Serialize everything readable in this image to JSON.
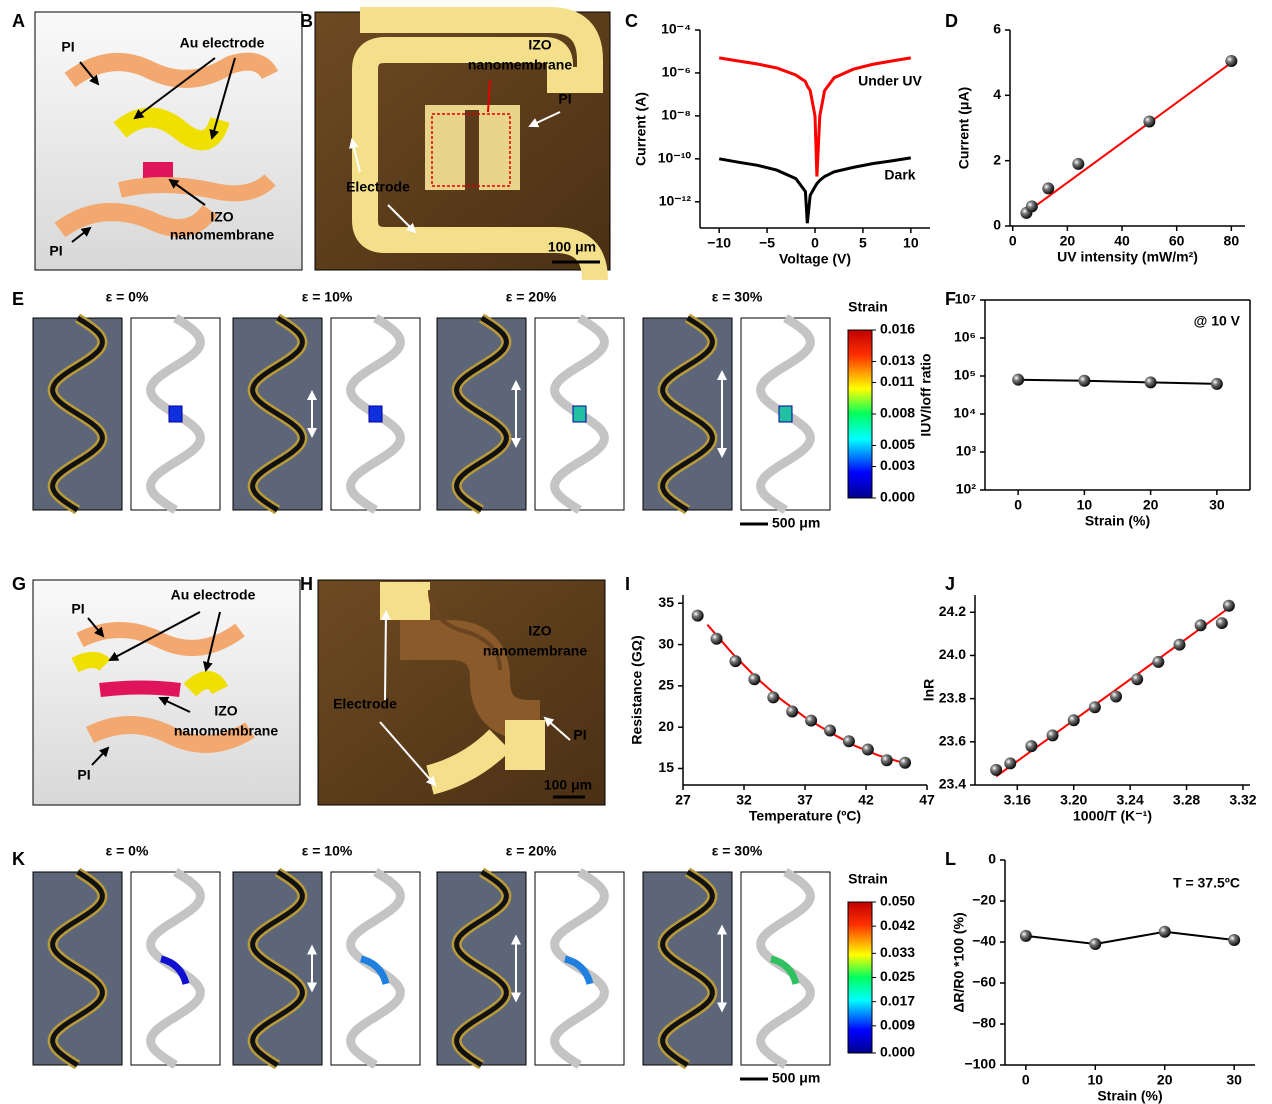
{
  "panel_labels": [
    "A",
    "B",
    "C",
    "D",
    "E",
    "F",
    "G",
    "H",
    "I",
    "J",
    "K",
    "L"
  ],
  "figure_a": {
    "labels": [
      "PI",
      "Au electrode",
      "IZO",
      "nanomembrane",
      "PI"
    ]
  },
  "figure_b": {
    "labels": [
      "IZO",
      "nanomembrane",
      "PI",
      "Electrode",
      "100 μm"
    ]
  },
  "figure_e": {
    "strains": [
      "ε = 0%",
      "ε = 10%",
      "ε = 20%",
      "ε = 30%"
    ],
    "colorbar_title": "Strain",
    "colorbar_ticks": [
      0.016,
      0.013,
      0.011,
      0.008,
      0.005,
      0.003,
      {
        "value": 0,
        "label": "0.000"
      }
    ],
    "scale_bar": "500 μm"
  },
  "figure_g": {
    "labels": [
      "PI",
      "Au electrode",
      "IZO",
      "nanomembrane",
      "PI"
    ]
  },
  "figure_h": {
    "labels": [
      "IZO",
      "nanomembrane",
      "PI",
      "Electrode",
      "100 μm"
    ]
  },
  "figure_k": {
    "strains": [
      "ε = 0%",
      "ε = 10%",
      "ε = 20%",
      "ε = 30%"
    ],
    "colorbar_title": "Strain",
    "colorbar_ticks": [
      {
        "value": 0.05,
        "label": "0.050"
      },
      0.042,
      0.033,
      0.025,
      0.017,
      0.009,
      {
        "value": 0,
        "label": "0.000"
      }
    ],
    "scale_bar": "500 μm"
  },
  "chart_data": [
    {
      "type": "line",
      "x_label": "Voltage (V)",
      "y_label": "Current (A)",
      "ylog": true,
      "x": [
        -10,
        -8,
        -6,
        -4,
        -2,
        -1,
        -0.8,
        -0.5,
        0,
        0.2,
        0.5,
        1,
        2,
        4,
        6,
        8,
        10
      ],
      "series": [
        {
          "name": "Under UV",
          "color": "#ff0000",
          "values": [
            5e-06,
            3.6e-06,
            2.6e-06,
            1.7e-06,
            8e-07,
            4e-07,
            2.5e-07,
            1.5e-07,
            1e-08,
            1.5e-11,
            1e-08,
            1.5e-07,
            6e-07,
            1.5e-06,
            2.5e-06,
            3.6e-06,
            5e-06
          ]
        },
        {
          "name": "Dark",
          "color": "#000000",
          "values": [
            1e-10,
            7e-11,
            5e-11,
            3e-11,
            1.2e-11,
            3e-12,
            1e-13,
            2e-12,
            5e-12,
            7e-12,
            1e-11,
            1.5e-11,
            2.5e-11,
            4e-11,
            6e-11,
            8e-11,
            1.1e-10
          ]
        }
      ],
      "xlim": [
        -12,
        12
      ],
      "xticks": [
        {
          "value": -10,
          "label": "−10"
        },
        {
          "value": -5,
          "label": "−5"
        },
        0,
        5,
        10
      ],
      "ylim": [
        6e-14,
        0.0001
      ],
      "yticks": [
        {
          "value": 0.0001,
          "label": "10⁻⁴"
        },
        {
          "value": 1e-06,
          "label": "10⁻⁶"
        },
        {
          "value": 1e-08,
          "label": "10⁻⁸"
        },
        {
          "value": 1e-10,
          "label": "10⁻¹⁰"
        },
        {
          "value": 1e-12,
          "label": "10⁻¹²"
        }
      ]
    },
    {
      "type": "scatter",
      "x_label": "UV intensity (mW/m²)",
      "y_label": "Current (μA)",
      "x": [
        5,
        7,
        13,
        24,
        50,
        80
      ],
      "series": [
        {
          "color": "#000000",
          "values": [
            0.4,
            0.6,
            1.15,
            1.9,
            3.2,
            5.05
          ]
        }
      ],
      "fit": {
        "color": "#ff0000",
        "x": [
          4,
          80
        ],
        "values": [
          0.35,
          5.0
        ]
      },
      "xlim": [
        -1,
        85
      ],
      "xticks": [
        0,
        20,
        40,
        60,
        80
      ],
      "ylim": [
        0,
        6
      ],
      "yticks": [
        0,
        2,
        4,
        6
      ]
    },
    {
      "type": "line",
      "markers": true,
      "box": true,
      "x_label": "Strain (%)",
      "y_label": "IUV/Ioff ratio",
      "ylog": true,
      "note": "@ 10 V",
      "x": [
        0,
        10,
        20,
        30
      ],
      "series": [
        {
          "color": "#000000",
          "values": [
            80000,
            75000,
            68000,
            62000
          ]
        }
      ],
      "xlim": [
        -5,
        35
      ],
      "xticks": [
        0,
        10,
        20,
        30
      ],
      "ylim": [
        100,
        10000000
      ],
      "yticks": [
        {
          "value": 10000000,
          "label": "10⁷"
        },
        {
          "value": 1000000,
          "label": "10⁶"
        },
        {
          "value": 100000,
          "label": "10⁵"
        },
        {
          "value": 10000,
          "label": "10⁴"
        },
        {
          "value": 1000,
          "label": "10³"
        },
        {
          "value": 100,
          "label": "10²"
        }
      ]
    },
    {
      "type": "scatter",
      "x_label": "Temperature (ºC)",
      "y_label": "Resistance (GΩ)",
      "x": [
        28.2,
        29.75,
        31.3,
        32.85,
        34.4,
        35.95,
        37.5,
        39.05,
        40.6,
        42.15,
        43.7,
        45.2
      ],
      "series": [
        {
          "color": "#000000",
          "values": [
            33.5,
            30.7,
            28,
            25.8,
            23.6,
            21.9,
            20.8,
            19.6,
            18.3,
            17.3,
            16,
            15.7
          ]
        }
      ],
      "fit": {
        "color": "#ff0000",
        "x": [
          29,
          31,
          33,
          35,
          37,
          39,
          41,
          43,
          45
        ],
        "values": [
          32.4,
          29.0,
          26.0,
          23.4,
          21.2,
          19.4,
          17.8,
          16.6,
          15.7
        ]
      },
      "xlim": [
        27,
        47
      ],
      "xticks": [
        27,
        32,
        37,
        42,
        47
      ],
      "ylim": [
        13,
        36
      ],
      "yticks": [
        15,
        20,
        25,
        30,
        35
      ]
    },
    {
      "type": "scatter",
      "x_label": "1000/T (K⁻¹)",
      "y_label": "lnR",
      "x": [
        3.145,
        3.155,
        3.17,
        3.185,
        3.2,
        3.215,
        3.23,
        3.245,
        3.26,
        3.275,
        3.29,
        3.305,
        3.31
      ],
      "series": [
        {
          "color": "#000000",
          "values": [
            23.47,
            23.5,
            23.58,
            23.63,
            23.7,
            23.76,
            23.81,
            23.89,
            23.97,
            24.05,
            24.14,
            24.15,
            24.23
          ]
        }
      ],
      "fit": {
        "color": "#ff0000",
        "x": [
          3.145,
          3.31
        ],
        "values": [
          23.44,
          24.22
        ]
      },
      "xlim": [
        3.13,
        3.325
      ],
      "xticks": [
        3.16,
        {
          "value": 3.2,
          "label": "3.20"
        },
        3.24,
        3.28,
        3.32
      ],
      "ylim": [
        23.4,
        24.28
      ],
      "yticks": [
        23.4,
        23.6,
        23.8,
        {
          "value": 24,
          "label": "24.0"
        },
        24.2
      ]
    },
    {
      "type": "line",
      "markers": true,
      "x_label": "Strain (%)",
      "y_label": "ΔR/R0 *100 (%)",
      "note": "T = 37.5ºC",
      "x": [
        0,
        10,
        20,
        30
      ],
      "series": [
        {
          "color": "#000000",
          "values": [
            -37,
            -41,
            -35,
            -39
          ]
        }
      ],
      "xlim": [
        -3,
        33
      ],
      "xticks": [
        0,
        10,
        20,
        30
      ],
      "ylim": [
        -100,
        0
      ],
      "yticks": [
        0,
        {
          "value": -20,
          "label": "−20"
        },
        {
          "value": -40,
          "label": "−40"
        },
        {
          "value": -60,
          "label": "−60"
        },
        {
          "value": -80,
          "label": "−80"
        },
        {
          "value": -100,
          "label": "−100"
        }
      ]
    }
  ]
}
